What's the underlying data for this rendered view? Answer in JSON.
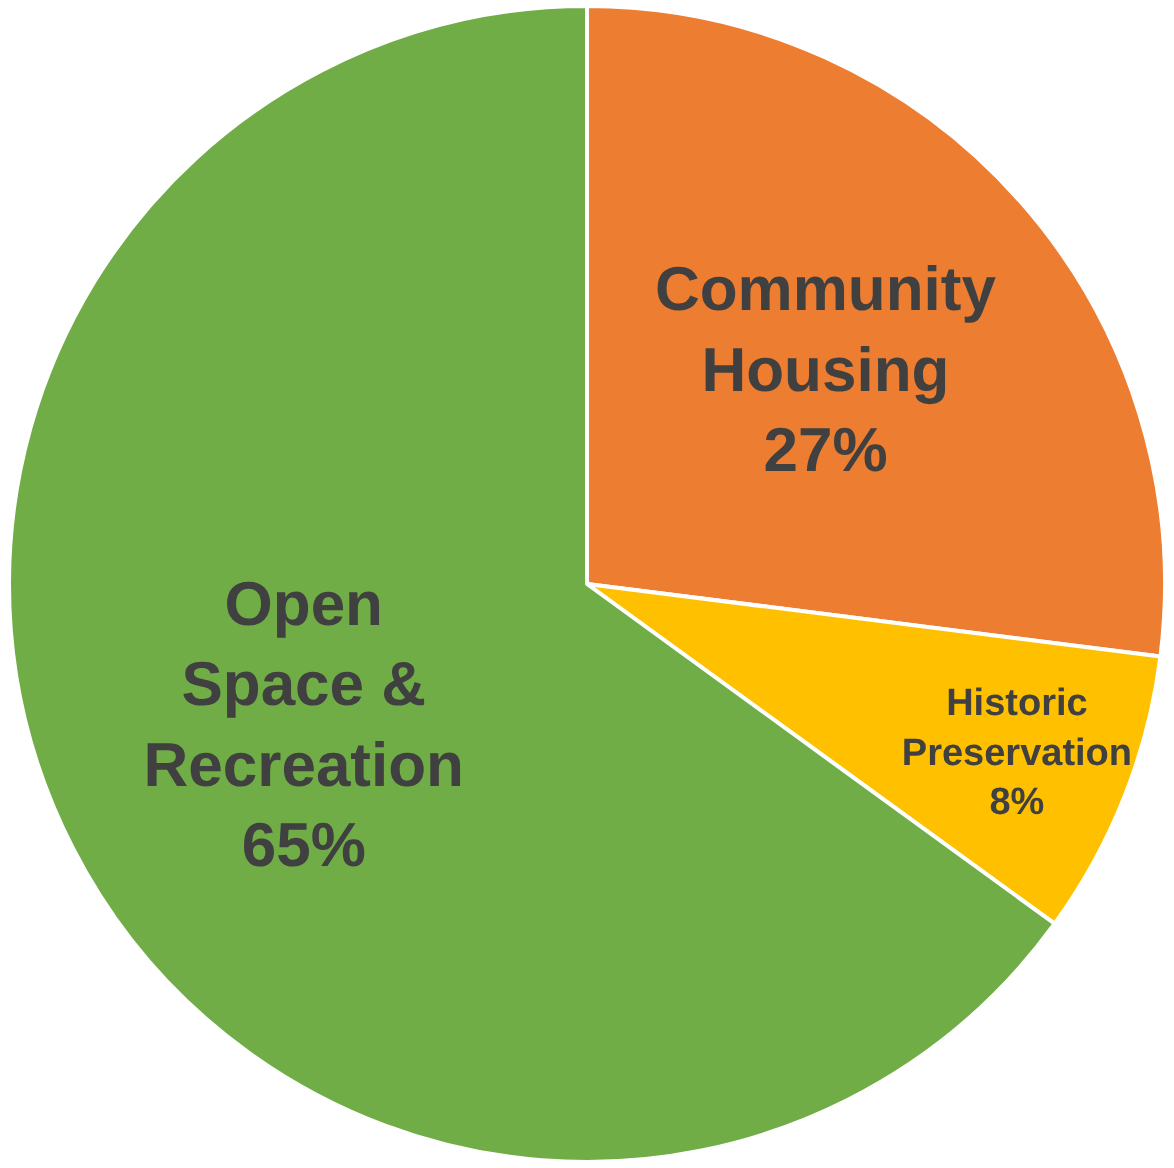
{
  "chart_data": {
    "type": "pie",
    "categories": [
      "Community Housing",
      "Historic Preservation",
      "Open Space & Recreation"
    ],
    "values": [
      27,
      8,
      65
    ],
    "colors": [
      "#ed7d31",
      "#ffc000",
      "#70ad47"
    ],
    "value_labels": [
      "27%",
      "8%",
      "65%"
    ],
    "legend": false
  }
}
